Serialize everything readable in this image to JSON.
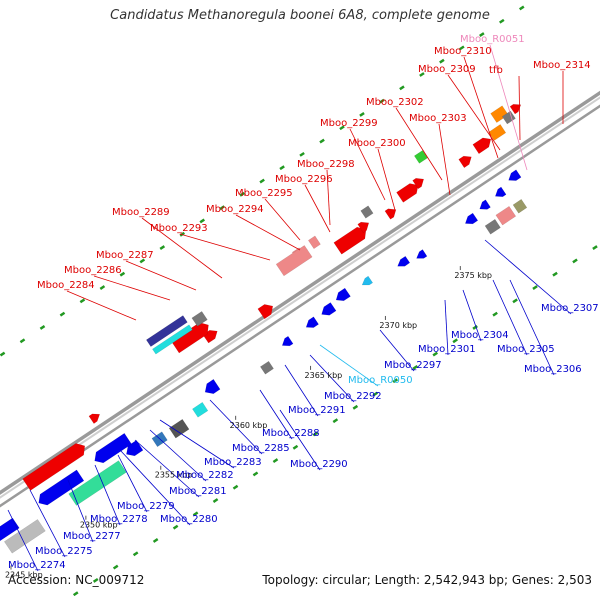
{
  "title": "Candidatus Methanoregula boonei 6A8, complete genome",
  "accession": "Accession: NC_009712",
  "summary": "Topology: circular; Length: 2,542,943 bp; Genes: 2,503",
  "colors": {
    "forward_label": "#dd0000",
    "reverse_label": "#0000cc",
    "rna_forward_label": "#ee88bb",
    "rna_reverse_label": "#22bbee",
    "backbone": "#aaaaaa",
    "leader": "#666666"
  },
  "scale_ticks": [
    "2345 kbp",
    "2350 kbp",
    "2355 kbp",
    "2360 kbp",
    "2365 kbp",
    "2370 kbp",
    "2375 kbp"
  ],
  "forward_labels": [
    "Mboo_R0051",
    "Mboo_2310",
    "Mboo_2309",
    "tfb",
    "Mboo_2314",
    "Mboo_2302",
    "Mboo_2303",
    "Mboo_2299",
    "Mboo_2300",
    "Mboo_2298",
    "Mboo_2296",
    "Mboo_2295",
    "Mboo_2294",
    "Mboo_2289",
    "Mboo_2293",
    "Mboo_2287",
    "Mboo_2286",
    "Mboo_2284"
  ],
  "reverse_labels": [
    "Mboo_2307",
    "Mboo_2304",
    "Mboo_2305",
    "Mboo_2306",
    "Mboo_2301",
    "Mboo_2297",
    "Mboo_R0050",
    "Mboo_2292",
    "Mboo_2291",
    "Mboo_2288",
    "Mboo_2290",
    "Mboo_2285",
    "Mboo_2283",
    "Mboo_2282",
    "Mboo_2281",
    "Mboo_2280",
    "Mboo_2279",
    "Mboo_2278",
    "Mboo_2277",
    "Mboo_2275",
    "Mboo_2274"
  ]
}
